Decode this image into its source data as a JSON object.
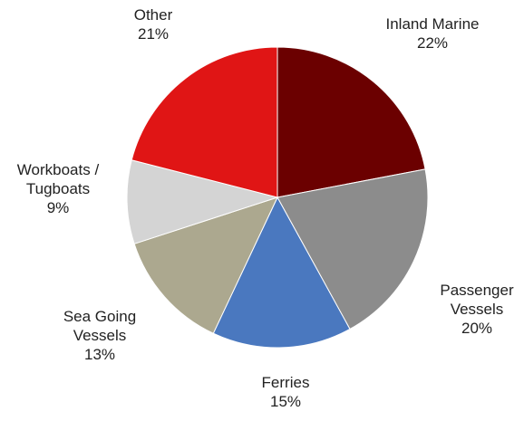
{
  "chart_data": {
    "type": "pie",
    "start_angle_deg": 0,
    "direction": "clockwise",
    "slices": [
      {
        "label_lines": [
          "Inland Marine",
          "22%"
        ],
        "value": 22,
        "color": "#6b0000"
      },
      {
        "label_lines": [
          "Passenger",
          "Vessels",
          "20%"
        ],
        "value": 20,
        "color": "#8c8c8c"
      },
      {
        "label_lines": [
          "Ferries",
          "15%"
        ],
        "value": 15,
        "color": "#4a78bf"
      },
      {
        "label_lines": [
          "Sea Going",
          "Vessels",
          "13%"
        ],
        "value": 13,
        "color": "#aca88f"
      },
      {
        "label_lines": [
          "Workboats /",
          "Tugboats",
          "9%"
        ],
        "value": 9,
        "color": "#d4d4d4"
      },
      {
        "label_lines": [
          "Other",
          "21%"
        ],
        "value": 21,
        "color": "#e01515"
      }
    ]
  }
}
